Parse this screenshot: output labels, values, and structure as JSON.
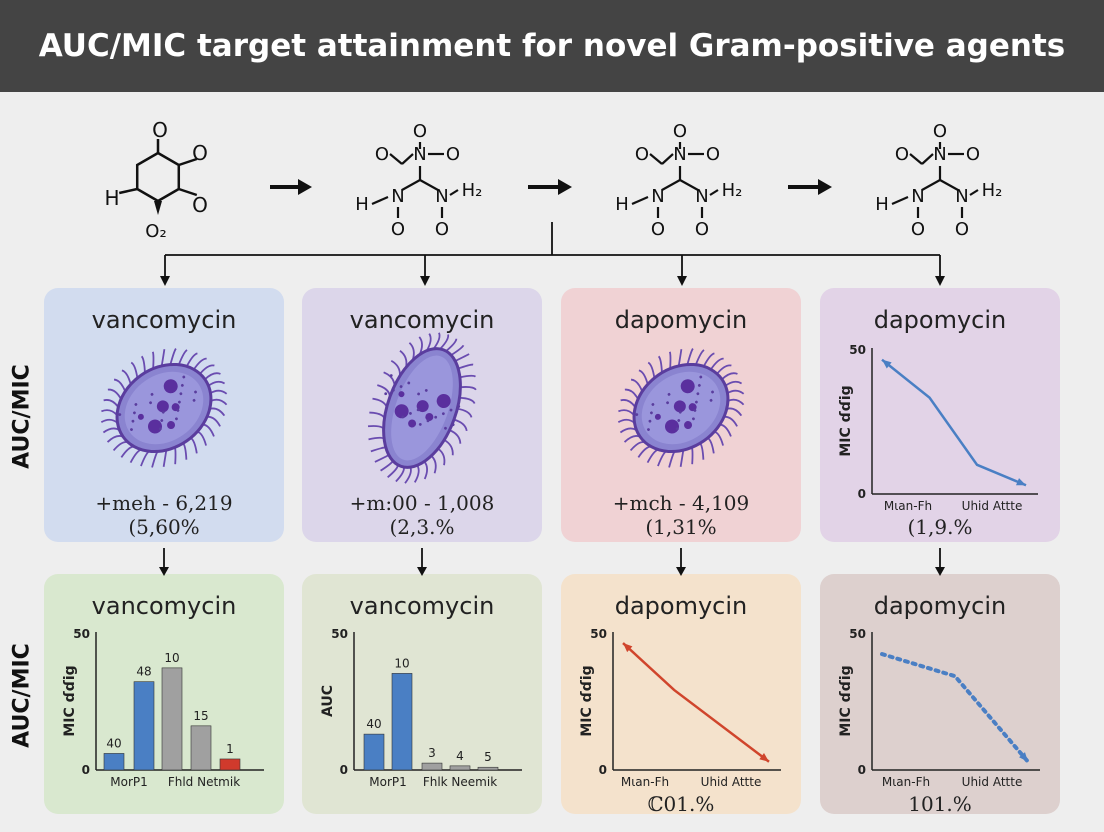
{
  "title": "AUC/MIC target attainment for novel Gram-positive agents",
  "molecules": [
    {
      "labels": [
        "O",
        "O",
        "H",
        "O",
        "O₂"
      ]
    },
    {
      "labels": [
        "O",
        "O",
        "N",
        "O",
        "H",
        "N",
        "N",
        "H₂",
        "O",
        "O"
      ]
    },
    {
      "labels": [
        "O",
        "O",
        "N",
        "O",
        "H",
        "N",
        "N",
        "H₂",
        "O",
        "O"
      ]
    },
    {
      "labels": [
        "O",
        "O",
        "N",
        "O",
        "H",
        "N",
        "N",
        "H₂",
        "O",
        "O"
      ]
    }
  ],
  "row_labels": [
    "AUC/MIC",
    "AUC/MIC"
  ],
  "top_cards": [
    {
      "title": "vancomycin",
      "icon": "bacterium-icon",
      "line1": "+meh - 6,219",
      "line2": "(5,60%",
      "bg": "#d2dcef"
    },
    {
      "title": "vancomycin",
      "icon": "bacterium-icon",
      "line1": "+m:00 - 1,008",
      "line2": "(2,3.%",
      "bg": "#dcd6ea"
    },
    {
      "title": "dapomycin",
      "icon": "bacterium-icon",
      "line1": "+mch - 4,109",
      "line2": "(1,31%",
      "bg": "#f0d2d4"
    },
    {
      "title": "dapomycin",
      "icon": "line-chart",
      "line2": "(1,9.%",
      "bg": "#e2d3e7",
      "chart": {
        "ytick_top": "50",
        "ytick_bottom": "0",
        "ylabel": "MIC ɗɗig",
        "xlabels": [
          "Mιan-Fh",
          "Uhid Attte"
        ]
      }
    }
  ],
  "bottom_cards": [
    {
      "title": "vancomycin",
      "bg": "#d9e8cf"
    },
    {
      "title": "vancomycin",
      "bg": "#e0e5d3"
    },
    {
      "title": "dapomycin",
      "bg": "#f4e2cc",
      "footer": "ℂ01.%"
    },
    {
      "title": "dapomycin",
      "bg": "#ddd0ce",
      "footer": "101.%"
    }
  ],
  "chart_data": [
    {
      "type": "line",
      "title": "",
      "ylabel": "MIC ɗɗig",
      "ylim": [
        0,
        50
      ],
      "yticks": [
        "50",
        "0"
      ],
      "xtick_labels": [
        "Mιan-Fh",
        "Uhid Attte"
      ],
      "series": [
        {
          "values": [
            [
              0,
              46
            ],
            [
              0.33,
              33
            ],
            [
              0.66,
              10
            ],
            [
              1,
              3
            ]
          ],
          "color": "#4a7fc4",
          "style": "solid"
        }
      ]
    },
    {
      "type": "bar",
      "title": "",
      "ylabel": "MIC ɗɗig",
      "ylim": [
        0,
        50
      ],
      "yticks": [
        "50",
        "0"
      ],
      "xtick_labels": [
        "MorP1",
        "Fhld Netmik"
      ],
      "bars": [
        {
          "label": "40",
          "value": 6,
          "color": "#4a7fc4"
        },
        {
          "label": "48",
          "value": 32,
          "color": "#4a7fc4"
        },
        {
          "label": "10",
          "value": 37,
          "color": "#a0a0a0"
        },
        {
          "label": "15",
          "value": 16,
          "color": "#a0a0a0"
        },
        {
          "label": "1",
          "value": 4,
          "color": "#d03a2c"
        }
      ]
    },
    {
      "type": "bar",
      "title": "",
      "ylabel": "AUC",
      "ylim": [
        0,
        50
      ],
      "yticks": [
        "50",
        "0"
      ],
      "xtick_labels": [
        "MorP1",
        "Fhlk Neemik"
      ],
      "bars": [
        {
          "label": "40",
          "value": 13,
          "color": "#4a7fc4"
        },
        {
          "label": "10",
          "value": 35,
          "color": "#4a7fc4"
        },
        {
          "label": "3",
          "value": 2.5,
          "color": "#a0a0a0"
        },
        {
          "label": "4",
          "value": 1.5,
          "color": "#a0a0a0"
        },
        {
          "label": "5",
          "value": 1,
          "color": "#a0a0a0"
        }
      ]
    },
    {
      "type": "line",
      "title": "",
      "ylabel": "MIC ɗɗig",
      "ylim": [
        0,
        50
      ],
      "yticks": [
        "50",
        "0"
      ],
      "xtick_labels": [
        "Mιan-Fh",
        "Uhid Attte"
      ],
      "series": [
        {
          "values": [
            [
              0,
              46
            ],
            [
              0.35,
              29
            ],
            [
              1,
              3
            ]
          ],
          "color": "#d0452c",
          "style": "solid"
        }
      ]
    },
    {
      "type": "line",
      "title": "",
      "ylabel": "MIC ɗɗig",
      "ylim": [
        0,
        50
      ],
      "yticks": [
        "50",
        "0"
      ],
      "xtick_labels": [
        "Mιan-Fh",
        "Uhid Attte"
      ],
      "series": [
        {
          "values": [
            [
              0,
              42
            ],
            [
              0.5,
              34
            ],
            [
              1,
              3
            ]
          ],
          "color": "#4a7fc4",
          "style": "dotted"
        }
      ]
    }
  ]
}
